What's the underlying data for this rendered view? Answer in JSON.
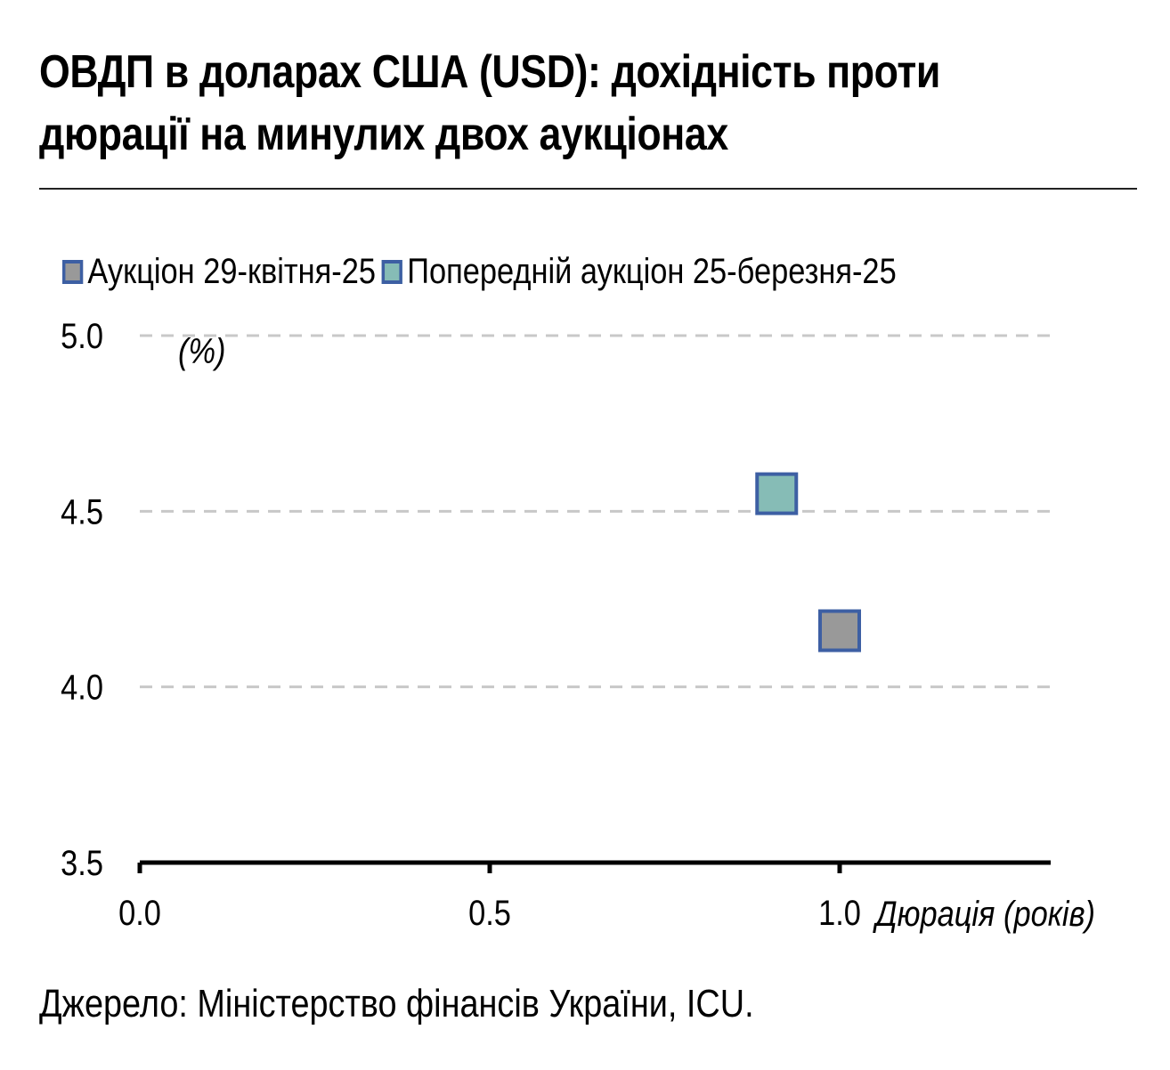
{
  "title": "ОВДП в доларах США (USD): дохідність проти дюрації на минулих двох аукціонах",
  "source": "Джерело: Міністерство фінансів України, ICU.",
  "colors": {
    "grey_marker": "#999999",
    "teal_marker": "#86bcb6",
    "marker_border": "#3d5fa3",
    "grid": "#c8c8c8",
    "axis": "#000000"
  },
  "chart_data": {
    "type": "scatter",
    "title": "ОВДП в доларах США (USD): дохідність проти дюрації на минулих двох аукціонах",
    "xlabel": "Дюрація (років)",
    "ylabel": "(%)",
    "xlim": [
      0,
      1.3
    ],
    "ylim": [
      3.5,
      5.0
    ],
    "x_ticks": [
      "0.0",
      "0.5",
      "1.0"
    ],
    "y_ticks": [
      "3.5",
      "4.0",
      "4.5",
      "5.0"
    ],
    "grid": "horizontal dashed",
    "legend_position": "top",
    "series": [
      {
        "name": "Аукціон 29-квітня-25",
        "color": "#999999",
        "points": [
          {
            "x": 1.0,
            "y": 4.16
          }
        ]
      },
      {
        "name": "Попередній аукціон 25-березня-25",
        "color": "#86bcb6",
        "points": [
          {
            "x": 0.91,
            "y": 4.55
          }
        ]
      }
    ]
  }
}
